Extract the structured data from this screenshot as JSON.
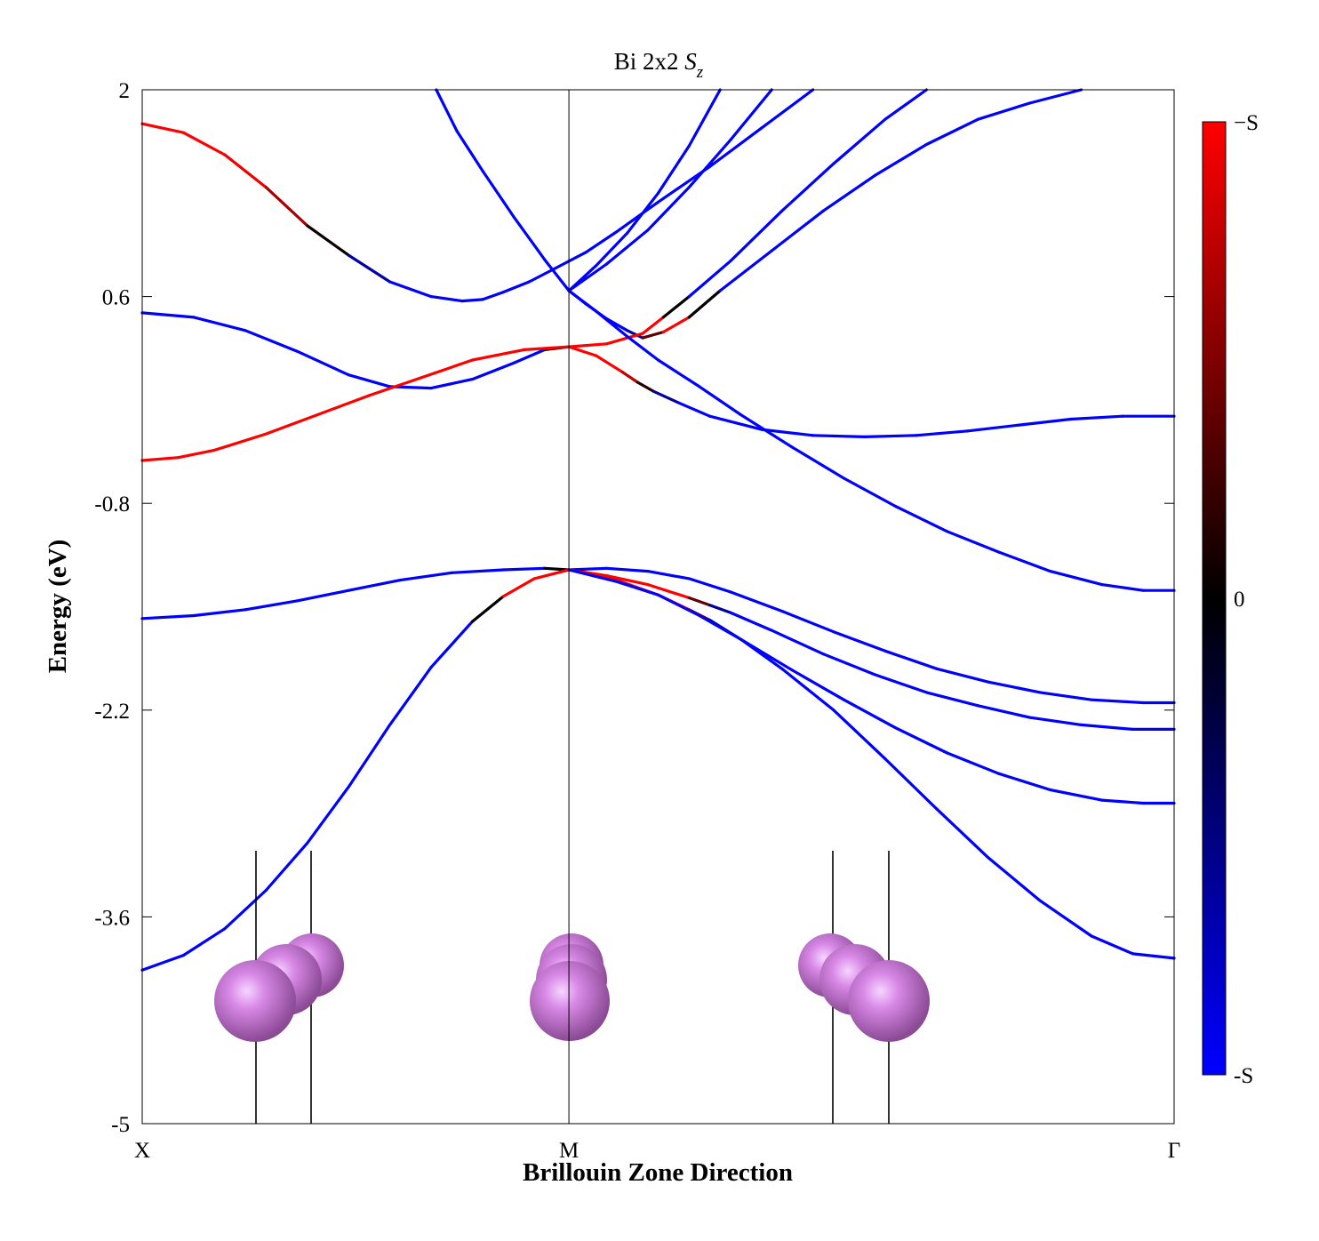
{
  "chart_data": {
    "type": "line",
    "title": "Bi 2x2 ",
    "title_symbol": "S",
    "title_subscript": "z",
    "xlabel": "Brillouin Zone Direction",
    "ylabel": "Energy (eV)",
    "xlim": [
      0,
      2
    ],
    "ylim": [
      -5,
      2
    ],
    "yticks": [
      2,
      0.6,
      -0.8,
      -2.2,
      -3.6,
      -5
    ],
    "ytick_labels": [
      "2",
      "0.6",
      "-0.8",
      "-2.2",
      "-3.6",
      "-5"
    ],
    "kpoints": [
      {
        "x": 0,
        "label": "X"
      },
      {
        "x": 0.827,
        "label": "M"
      },
      {
        "x": 2,
        "label": "Γ"
      }
    ],
    "colors": {
      "neg": "#0000ff",
      "zero": "#000000",
      "pos": "#ff0000"
    },
    "colorbar": {
      "top_label": "−S",
      "mid_label": "0",
      "bottom_label": "-S"
    },
    "legend": "none",
    "grid": false,
    "series": [
      {
        "spin": "mixed",
        "points": [
          [
            0,
            1.77,
            1
          ],
          [
            0.08,
            1.71,
            1
          ],
          [
            0.16,
            1.56,
            1
          ],
          [
            0.24,
            1.34,
            0.9
          ],
          [
            0.32,
            1.08,
            0.4
          ],
          [
            0.4,
            0.88,
            -0.3
          ],
          [
            0.48,
            0.7,
            -1
          ],
          [
            0.56,
            0.6,
            -1
          ],
          [
            0.62,
            0.57,
            -1
          ],
          [
            0.66,
            0.58,
            -1
          ],
          [
            0.7,
            0.63,
            -1
          ],
          [
            0.75,
            0.7,
            -1
          ],
          [
            0.8,
            0.79,
            -1
          ],
          [
            0.86,
            0.9,
            -1
          ],
          [
            0.92,
            1.04,
            -1
          ],
          [
            1.0,
            1.24,
            -1
          ],
          [
            1.1,
            1.48,
            -1
          ],
          [
            1.2,
            1.74,
            -1
          ],
          [
            1.3,
            2.0,
            -1
          ]
        ]
      },
      {
        "spin": "neg",
        "points": [
          [
            0,
            0.49,
            -1
          ],
          [
            0.1,
            0.46,
            -1
          ],
          [
            0.2,
            0.37,
            -1
          ],
          [
            0.3,
            0.23,
            -1
          ],
          [
            0.4,
            0.07,
            -1
          ],
          [
            0.48,
            -0.01,
            -1
          ],
          [
            0.56,
            -0.02,
            -1
          ],
          [
            0.64,
            0.04,
            -1
          ],
          [
            0.72,
            0.15,
            -1
          ],
          [
            0.78,
            0.24,
            -1
          ],
          [
            0.827,
            0.26,
            1
          ]
        ]
      },
      {
        "spin": "pos",
        "points": [
          [
            0.827,
            0.26,
            1
          ],
          [
            0.74,
            0.24,
            1
          ],
          [
            0.64,
            0.17,
            1
          ],
          [
            0.54,
            0.05,
            1
          ],
          [
            0.44,
            -0.07,
            1
          ],
          [
            0.34,
            -0.2,
            1
          ],
          [
            0.24,
            -0.33,
            1
          ],
          [
            0.14,
            -0.44,
            1
          ],
          [
            0.07,
            -0.49,
            1
          ],
          [
            0,
            -0.51,
            1
          ]
        ]
      },
      {
        "spin": "mixed",
        "points": [
          [
            0.827,
            0.26,
            1
          ],
          [
            0.88,
            0.2,
            1
          ],
          [
            0.93,
            0.09,
            1
          ],
          [
            0.96,
            0.02,
            0.5
          ],
          [
            0.99,
            -0.04,
            -0.2
          ],
          [
            1.04,
            -0.12,
            -1
          ],
          [
            1.1,
            -0.21,
            -1
          ],
          [
            1.2,
            -0.3,
            -1
          ],
          [
            1.3,
            -0.34,
            -1
          ],
          [
            1.4,
            -0.35,
            -1
          ],
          [
            1.5,
            -0.34,
            -1
          ],
          [
            1.6,
            -0.31,
            -1
          ],
          [
            1.7,
            -0.27,
            -1
          ],
          [
            1.8,
            -0.23,
            -1
          ],
          [
            1.9,
            -0.21,
            -1
          ],
          [
            2.0,
            -0.21,
            -1
          ]
        ]
      },
      {
        "spin": "mixed",
        "points": [
          [
            0.827,
            0.64,
            -1
          ],
          [
            0.86,
            0.55,
            -1
          ],
          [
            0.9,
            0.45,
            -1
          ],
          [
            0.94,
            0.37,
            -1
          ],
          [
            0.97,
            0.32,
            -0.3
          ],
          [
            1.01,
            0.36,
            1
          ],
          [
            1.06,
            0.46,
            1
          ],
          [
            1.12,
            0.64,
            -1
          ],
          [
            1.22,
            0.91,
            -1
          ],
          [
            1.32,
            1.18,
            -1
          ],
          [
            1.42,
            1.42,
            -1
          ],
          [
            1.52,
            1.63,
            -1
          ],
          [
            1.62,
            1.8,
            -1
          ],
          [
            1.72,
            1.91,
            -1
          ],
          [
            1.82,
            2.0,
            -1
          ]
        ]
      },
      {
        "spin": "mixed",
        "points": [
          [
            0.827,
            0.26,
            1
          ],
          [
            0.9,
            0.28,
            1
          ],
          [
            0.97,
            0.35,
            1
          ],
          [
            1.01,
            0.46,
            1
          ],
          [
            1.06,
            0.6,
            -1
          ],
          [
            1.14,
            0.84,
            -1
          ],
          [
            1.24,
            1.18,
            -1
          ],
          [
            1.34,
            1.5,
            -1
          ],
          [
            1.44,
            1.8,
            -1
          ],
          [
            1.52,
            2.0,
            -1
          ]
        ]
      },
      {
        "spin": "neg",
        "points": [
          [
            0.827,
            0.64,
            -1
          ],
          [
            0.9,
            0.82,
            -1
          ],
          [
            0.98,
            1.05,
            -1
          ],
          [
            1.06,
            1.34,
            -1
          ],
          [
            1.14,
            1.66,
            -1
          ],
          [
            1.22,
            2.0,
            -1
          ]
        ]
      },
      {
        "spin": "neg",
        "points": [
          [
            0.827,
            0.64,
            -1
          ],
          [
            0.88,
            0.81,
            -1
          ],
          [
            0.94,
            1.03,
            -1
          ],
          [
            1.0,
            1.3,
            -1
          ],
          [
            1.06,
            1.62,
            -1
          ],
          [
            1.12,
            2.0,
            -1
          ]
        ]
      },
      {
        "spin": "neg",
        "points": [
          [
            0.827,
            0.64,
            -1
          ],
          [
            0.78,
            0.85,
            -1
          ],
          [
            0.72,
            1.14,
            -1
          ],
          [
            0.66,
            1.45,
            -1
          ],
          [
            0.61,
            1.72,
            -1
          ],
          [
            0.57,
            2.0,
            -1
          ]
        ]
      },
      {
        "spin": "neg",
        "points": [
          [
            0.827,
            0.64,
            -1
          ],
          [
            0.88,
            0.5,
            -1
          ],
          [
            0.94,
            0.33,
            -1
          ],
          [
            1.0,
            0.17,
            -1
          ],
          [
            1.08,
            -0.01,
            -1
          ],
          [
            1.16,
            -0.2,
            -1
          ],
          [
            1.26,
            -0.42,
            -1
          ],
          [
            1.36,
            -0.63,
            -1
          ],
          [
            1.46,
            -0.82,
            -1
          ],
          [
            1.56,
            -0.99,
            -1
          ],
          [
            1.66,
            -1.13,
            -1
          ],
          [
            1.76,
            -1.26,
            -1
          ],
          [
            1.86,
            -1.35,
            -1
          ],
          [
            1.94,
            -1.39,
            -1
          ],
          [
            2.0,
            -1.39,
            -1
          ]
        ]
      },
      {
        "spin": "neg",
        "points": [
          [
            0,
            -1.58,
            -1
          ],
          [
            0.1,
            -1.56,
            -1
          ],
          [
            0.2,
            -1.52,
            -1
          ],
          [
            0.3,
            -1.46,
            -1
          ],
          [
            0.4,
            -1.39,
            -1
          ],
          [
            0.5,
            -1.32,
            -1
          ],
          [
            0.6,
            -1.27,
            -1
          ],
          [
            0.7,
            -1.25,
            -1
          ],
          [
            0.78,
            -1.24,
            -1
          ],
          [
            0.827,
            -1.25,
            1
          ]
        ]
      },
      {
        "spin": "mixed",
        "points": [
          [
            0,
            -3.96,
            -1
          ],
          [
            0.08,
            -3.86,
            -1
          ],
          [
            0.16,
            -3.68,
            -1
          ],
          [
            0.24,
            -3.42,
            -1
          ],
          [
            0.32,
            -3.1,
            -1
          ],
          [
            0.4,
            -2.72,
            -1
          ],
          [
            0.48,
            -2.3,
            -1
          ],
          [
            0.56,
            -1.91,
            -1
          ],
          [
            0.64,
            -1.6,
            -1
          ],
          [
            0.7,
            -1.43,
            1
          ],
          [
            0.76,
            -1.31,
            1
          ],
          [
            0.827,
            -1.25,
            1
          ]
        ]
      },
      {
        "spin": "mixed",
        "points": [
          [
            0.827,
            -1.25,
            1
          ],
          [
            0.9,
            -1.29,
            1
          ],
          [
            0.98,
            -1.35,
            1
          ],
          [
            1.06,
            -1.44,
            1
          ],
          [
            1.1,
            -1.49,
            -0.2
          ],
          [
            1.14,
            -1.54,
            -1
          ],
          [
            1.22,
            -1.66,
            -1
          ],
          [
            1.32,
            -1.82,
            -1
          ],
          [
            1.42,
            -1.96,
            -1
          ],
          [
            1.52,
            -2.08,
            -1
          ],
          [
            1.62,
            -2.17,
            -1
          ],
          [
            1.72,
            -2.25,
            -1
          ],
          [
            1.82,
            -2.3,
            -1
          ],
          [
            1.92,
            -2.33,
            -1
          ],
          [
            2.0,
            -2.33,
            -1
          ]
        ]
      },
      {
        "spin": "neg",
        "points": [
          [
            0.827,
            -1.25,
            -1
          ],
          [
            0.9,
            -1.24,
            -1
          ],
          [
            0.98,
            -1.26,
            -1
          ],
          [
            1.06,
            -1.31,
            -1
          ],
          [
            1.14,
            -1.4,
            -1
          ],
          [
            1.24,
            -1.53,
            -1
          ],
          [
            1.34,
            -1.67,
            -1
          ],
          [
            1.44,
            -1.8,
            -1
          ],
          [
            1.54,
            -1.92,
            -1
          ],
          [
            1.64,
            -2.01,
            -1
          ],
          [
            1.74,
            -2.08,
            -1
          ],
          [
            1.84,
            -2.13,
            -1
          ],
          [
            1.94,
            -2.15,
            -1
          ],
          [
            2.0,
            -2.15,
            -1
          ]
        ]
      },
      {
        "spin": "mixed",
        "points": [
          [
            0.827,
            -1.25,
            1
          ],
          [
            0.92,
            -1.32,
            1
          ],
          [
            1.0,
            -1.42,
            1
          ],
          [
            1.06,
            -1.52,
            1
          ],
          [
            1.1,
            -1.59,
            -0.1
          ],
          [
            1.16,
            -1.72,
            -1
          ],
          [
            1.24,
            -1.92,
            -1
          ],
          [
            1.34,
            -2.2,
            -1
          ],
          [
            1.44,
            -2.53,
            -1
          ],
          [
            1.54,
            -2.87,
            -1
          ],
          [
            1.64,
            -3.2,
            -1
          ],
          [
            1.74,
            -3.49,
            -1
          ],
          [
            1.84,
            -3.73,
            -1
          ],
          [
            1.92,
            -3.85,
            -1
          ],
          [
            2.0,
            -3.88,
            -1
          ]
        ]
      },
      {
        "spin": "neg",
        "points": [
          [
            0.827,
            -1.25,
            -1
          ],
          [
            0.92,
            -1.33,
            -1
          ],
          [
            1.0,
            -1.42,
            -1
          ],
          [
            1.08,
            -1.56,
            -1
          ],
          [
            1.16,
            -1.72,
            -1
          ],
          [
            1.26,
            -1.93,
            -1
          ],
          [
            1.36,
            -2.13,
            -1
          ],
          [
            1.46,
            -2.32,
            -1
          ],
          [
            1.56,
            -2.49,
            -1
          ],
          [
            1.66,
            -2.63,
            -1
          ],
          [
            1.76,
            -2.74,
            -1
          ],
          [
            1.86,
            -2.81,
            -1
          ],
          [
            1.94,
            -2.83,
            -1
          ],
          [
            2.0,
            -2.83,
            -1
          ]
        ]
      }
    ]
  }
}
